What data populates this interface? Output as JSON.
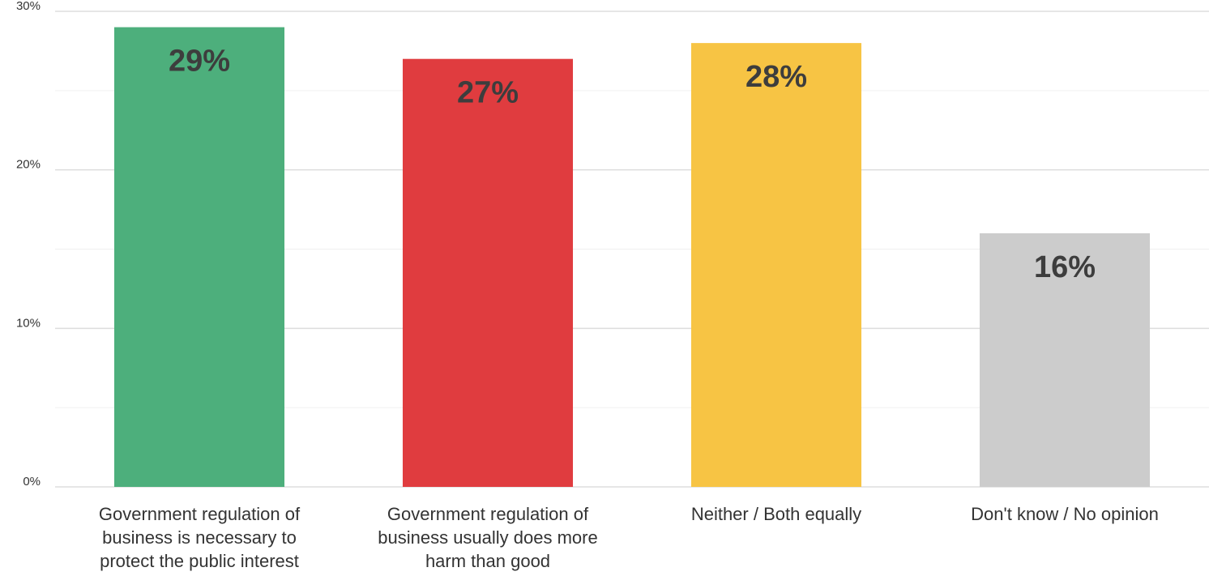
{
  "chart_data": {
    "type": "bar",
    "title": "",
    "xlabel": "",
    "ylabel": "",
    "ylim": [
      0,
      30
    ],
    "y_ticks": [
      0,
      10,
      20,
      30
    ],
    "y_tick_labels": [
      "0%",
      "10%",
      "20%",
      "30%"
    ],
    "grid": true,
    "categories": [
      [
        "Government regulation of",
        "business is necessary to",
        "protect the public interest"
      ],
      [
        "Government regulation of",
        "business usually does more",
        "harm than good"
      ],
      [
        "Neither / Both equally"
      ],
      [
        "Don't know / No opinion"
      ]
    ],
    "values": [
      29,
      27,
      28,
      16
    ],
    "data_labels": [
      "29%",
      "27%",
      "28%",
      "16%"
    ],
    "colors": [
      "#4daf7c",
      "#e03c3f",
      "#f7c444",
      "#cccccc"
    ]
  }
}
